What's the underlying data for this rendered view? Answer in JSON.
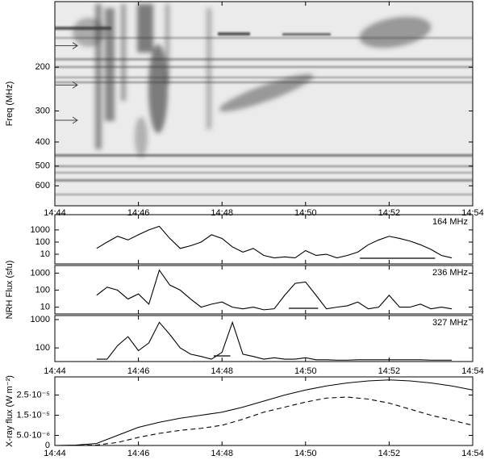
{
  "chart_data": [
    {
      "type": "spectrogram",
      "ylabel": "Freq (MHz)",
      "yscale": "log",
      "yinvert": true,
      "xlim": [
        44,
        54
      ],
      "ylim": [
        109,
        722
      ],
      "xticks": [
        {
          "value": 44,
          "label": "14:44"
        },
        {
          "value": 46,
          "label": "14:46"
        },
        {
          "value": 48,
          "label": "14:48"
        },
        {
          "value": 50,
          "label": "14:50"
        },
        {
          "value": 52,
          "label": "14:52"
        },
        {
          "value": 54,
          "label": "14:54"
        }
      ],
      "yticks": [
        200,
        300,
        400,
        500,
        600
      ],
      "arrows": [
        164,
        236,
        327
      ]
    },
    {
      "type": "line",
      "annotation": "164 MHz",
      "yscale": "log",
      "color": "#000000",
      "xlim": [
        44,
        54
      ],
      "ylim": [
        1.6,
        18000
      ],
      "xticks": [
        44,
        46,
        48,
        50,
        52,
        54
      ],
      "yticks": [
        10,
        100,
        1000
      ],
      "x": [
        45,
        45.25,
        45.5,
        45.75,
        46,
        46.25,
        46.5,
        46.75,
        47,
        47.25,
        47.5,
        47.75,
        48,
        48.25,
        48.5,
        48.75,
        49,
        49.25,
        49.5,
        49.75,
        50,
        50.25,
        50.5,
        50.75,
        51,
        51.25,
        51.5,
        51.75,
        52,
        52.25,
        52.5,
        52.75,
        53,
        53.25,
        53.5
      ],
      "values": [
        30,
        100,
        300,
        150,
        400,
        1000,
        2000,
        200,
        30,
        50,
        100,
        400,
        200,
        40,
        15,
        30,
        8,
        5,
        6,
        5,
        20,
        8,
        10,
        5,
        8,
        15,
        60,
        150,
        300,
        200,
        120,
        60,
        25,
        8,
        5
      ],
      "interval": [
        51.3,
        53.1
      ]
    },
    {
      "type": "line",
      "annotation": "236 MHz",
      "ylabel": "NRH Flux (sfu)",
      "yscale": "log",
      "color": "#000000",
      "xlim": [
        44,
        54
      ],
      "ylim": [
        4,
        2800
      ],
      "xticks": [
        44,
        46,
        48,
        50,
        52,
        54
      ],
      "yticks": [
        10,
        100,
        1000
      ],
      "x": [
        45,
        45.25,
        45.5,
        45.75,
        46,
        46.25,
        46.5,
        46.75,
        47,
        47.25,
        47.5,
        47.75,
        48,
        48.25,
        48.5,
        48.75,
        49,
        49.25,
        49.5,
        49.75,
        50,
        50.25,
        50.5,
        50.75,
        51,
        51.25,
        51.5,
        51.75,
        52,
        52.25,
        52.5,
        52.75,
        53,
        53.25,
        53.5
      ],
      "values": [
        50,
        150,
        100,
        30,
        60,
        15,
        1500,
        200,
        100,
        30,
        10,
        15,
        20,
        10,
        8,
        10,
        7,
        8,
        50,
        250,
        300,
        50,
        8,
        10,
        12,
        20,
        8,
        10,
        50,
        10,
        10,
        15,
        8,
        10,
        8
      ],
      "interval": [
        49.6,
        50.3
      ]
    },
    {
      "type": "line",
      "annotation": "327 MHz",
      "yscale": "log",
      "color": "#000000",
      "xlim": [
        44,
        54
      ],
      "ylim": [
        33,
        1390
      ],
      "xticks": [
        {
          "value": 44,
          "label": "14:44"
        },
        {
          "value": 46,
          "label": "14:46"
        },
        {
          "value": 48,
          "label": "14:48"
        },
        {
          "value": 50,
          "label": "14:50"
        },
        {
          "value": 52,
          "label": "14:52"
        },
        {
          "value": 54,
          "label": "14:54"
        }
      ],
      "yticks": [
        100,
        1000
      ],
      "x": [
        45,
        45.25,
        45.5,
        45.75,
        46,
        46.25,
        46.5,
        46.75,
        47,
        47.25,
        47.5,
        47.75,
        48,
        48.25,
        48.5,
        48.75,
        49,
        49.25,
        49.5,
        49.75,
        50,
        50.25,
        50.5,
        50.75,
        51,
        51.25,
        51.5,
        51.75,
        52,
        52.25,
        52.5,
        52.75,
        53,
        53.25,
        53.5
      ],
      "values": [
        40,
        40,
        120,
        250,
        80,
        150,
        800,
        300,
        100,
        60,
        50,
        40,
        70,
        800,
        60,
        50,
        40,
        45,
        40,
        40,
        45,
        38,
        38,
        37,
        37,
        38,
        38,
        38,
        38,
        38,
        38,
        38,
        37,
        37,
        37
      ],
      "interval": [
        47.8,
        48.2
      ]
    },
    {
      "type": "line",
      "ylabel": "X-ray flux (W m⁻²)",
      "xlim": [
        44,
        54
      ],
      "ylim": [
        0,
        3.4e-05
      ],
      "xticks": [
        {
          "value": 44,
          "label": "14:44"
        },
        {
          "value": 46,
          "label": "14:46"
        },
        {
          "value": 48,
          "label": "14:48"
        },
        {
          "value": 50,
          "label": "14:50"
        },
        {
          "value": 52,
          "label": "14:52"
        },
        {
          "value": 54,
          "label": "14:54"
        }
      ],
      "yticks": [
        0,
        {
          "value": 5e-06,
          "label": "5.0·10⁻⁶"
        },
        {
          "value": 1.5e-05,
          "label": "1.5·10⁻⁵"
        },
        {
          "value": 2.5e-05,
          "label": "2.5·10⁻⁵"
        }
      ],
      "x": [
        44,
        44.5,
        45,
        45.5,
        46,
        46.5,
        47,
        47.5,
        48,
        48.5,
        49,
        49.5,
        50,
        50.5,
        51,
        51.5,
        52,
        52.5,
        53,
        53.5,
        54
      ],
      "series": [
        {
          "color": "#000000",
          "dashed": false,
          "values": [
            0,
            2e-07,
            1e-06,
            5e-06,
            9e-06,
            1.15e-05,
            1.35e-05,
            1.5e-05,
            1.65e-05,
            1.9e-05,
            2.2e-05,
            2.5e-05,
            2.75e-05,
            2.95e-05,
            3.1e-05,
            3.2e-05,
            3.25e-05,
            3.2e-05,
            3.1e-05,
            2.95e-05,
            2.75e-05
          ]
        },
        {
          "color": "#000000",
          "dashed": true,
          "values": [
            0,
            0,
            2e-07,
            1.5e-06,
            4e-06,
            6e-06,
            7.5e-06,
            8.5e-06,
            1e-05,
            1.3e-05,
            1.65e-05,
            1.9e-05,
            2.15e-05,
            2.35e-05,
            2.4e-05,
            2.3e-05,
            2.1e-05,
            1.8e-05,
            1.5e-05,
            1.25e-05,
            1e-05
          ]
        }
      ]
    }
  ]
}
